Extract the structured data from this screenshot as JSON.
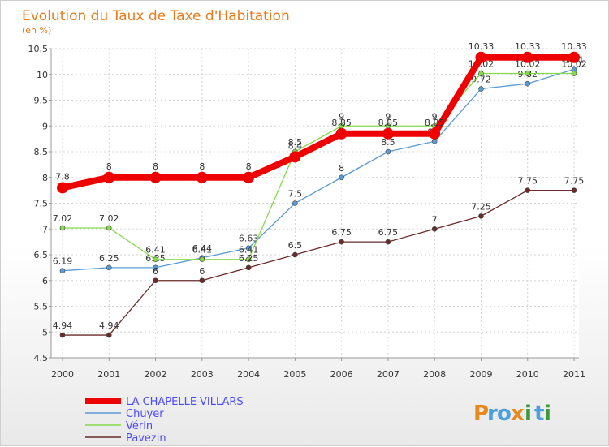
{
  "chart_data": {
    "type": "line",
    "title": "Evolution du Taux de Taxe d'Habitation",
    "unit_label": "(en %)",
    "x": [
      "2000",
      "2001",
      "2002",
      "2003",
      "2004",
      "2005",
      "2006",
      "2007",
      "2008",
      "2009",
      "2010",
      "2011"
    ],
    "ylim": [
      4.5,
      10.5
    ],
    "yticks": [
      "4.5",
      "5",
      "5.5",
      "6",
      "6.5",
      "7",
      "7.5",
      "8",
      "8.5",
      "9",
      "9.5",
      "10",
      "10.5"
    ],
    "grid": true,
    "series": [
      {
        "name": "LA CHAPELLE-VILLARS",
        "color": "#ee0000",
        "values": [
          7.8,
          8,
          8,
          8,
          8,
          8.4,
          8.85,
          8.85,
          8.85,
          10.33,
          10.33,
          10.33
        ],
        "labels": [
          "7.8",
          "8",
          "8",
          "8",
          "8",
          "8.4",
          "8.85",
          "8.85",
          "8.85",
          "10.33",
          "10.33",
          "10.33"
        ]
      },
      {
        "name": "Chuyer",
        "color": "#5b9bd5",
        "values": [
          6.19,
          6.25,
          6.25,
          6.44,
          6.63,
          7.5,
          8,
          8.5,
          8.7,
          9.72,
          9.82,
          10.1
        ],
        "labels": [
          "6.19",
          "6.25",
          "6.25",
          "6.44",
          "6.63",
          "7.5",
          "8",
          "8.5",
          "8.7",
          "9.72",
          "9.82",
          "10.1"
        ]
      },
      {
        "name": "Vérin",
        "color": "#86d94a",
        "values": [
          7.02,
          7.02,
          6.41,
          6.41,
          6.41,
          8.5,
          9,
          9,
          9,
          10.02,
          10.02,
          10.02
        ],
        "labels": [
          "7.02",
          "7.02",
          "6.41",
          "6.41",
          "6.41",
          "8.5",
          "9",
          "9",
          "9",
          "10.02",
          "10.02",
          "10.02"
        ]
      },
      {
        "name": "Pavezin",
        "color": "#6b2b2b",
        "values": [
          4.94,
          4.94,
          6,
          6,
          6.25,
          6.5,
          6.75,
          6.75,
          7,
          7.25,
          7.75,
          7.75
        ],
        "labels": [
          "4.94",
          "4.94",
          "6",
          "6",
          "6.25",
          "6.5",
          "6.75",
          "6.75",
          "7",
          "7.25",
          "7.75",
          "7.75"
        ]
      }
    ],
    "legend_text_color": "#4a4aff"
  },
  "brand": {
    "letters": [
      "P",
      "r",
      "o",
      "x",
      "i",
      "t",
      "i"
    ],
    "colors": [
      "#e8891b",
      "#4aa0e0",
      "#4aa0e0",
      "#e8891b",
      "#3c9a3c",
      "#4aa0e0",
      "#3c9a3c"
    ]
  }
}
